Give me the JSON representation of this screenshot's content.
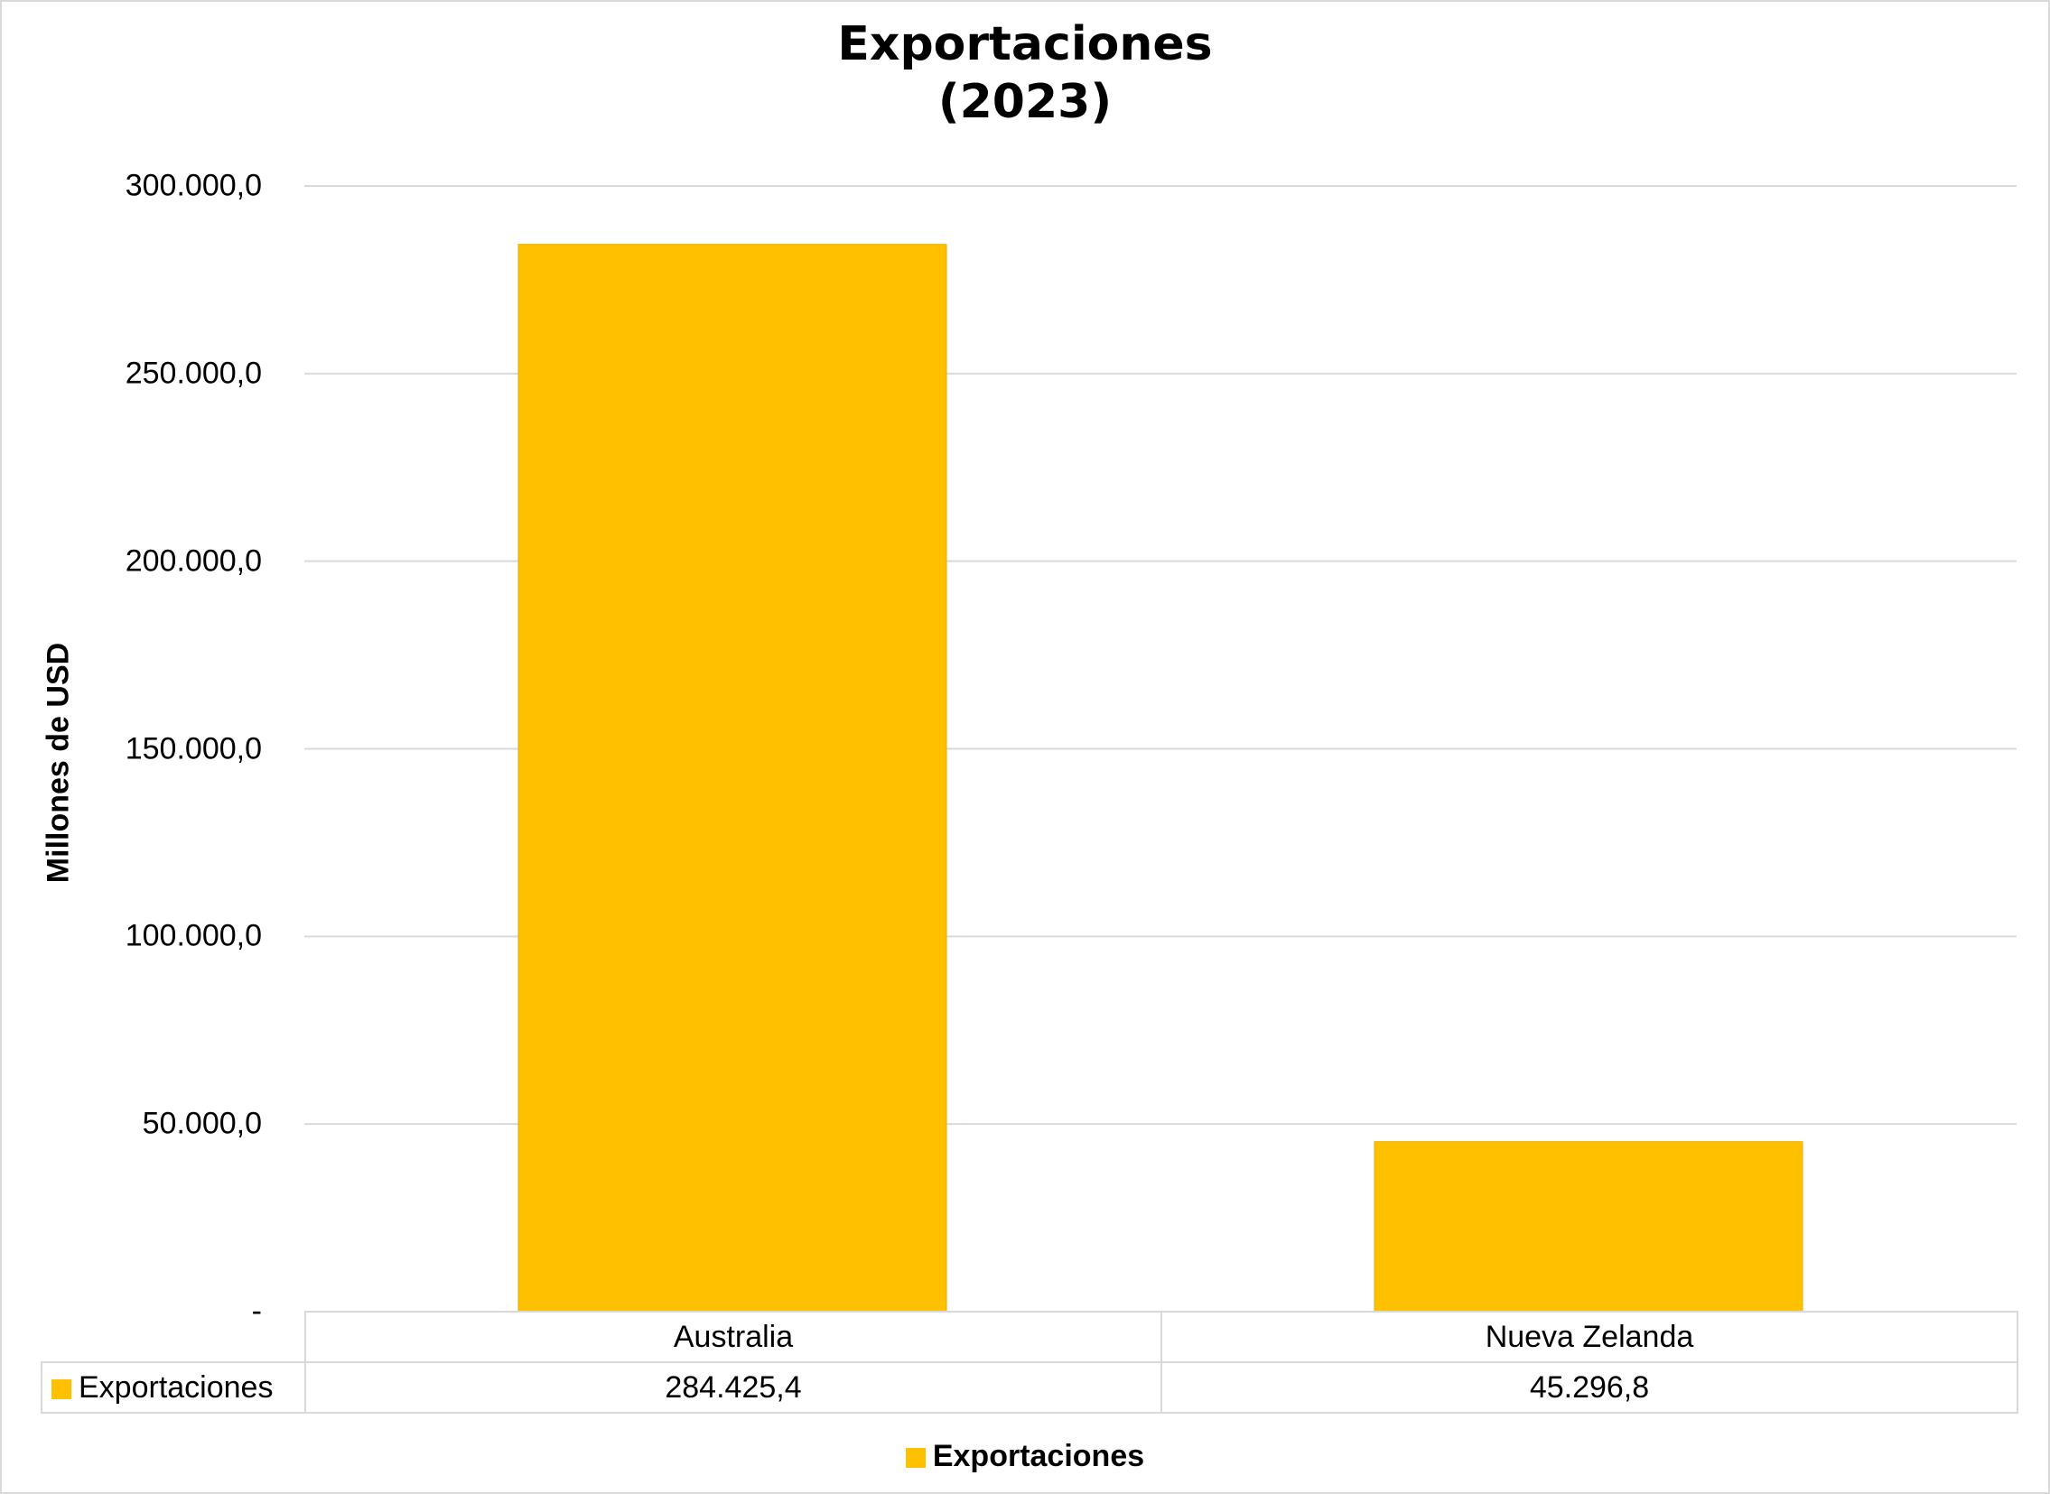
{
  "chart_data": {
    "type": "bar",
    "title": [
      "Exportaciones",
      "(2023)"
    ],
    "ylabel": "Millones de USD",
    "xlabel": "",
    "categories": [
      "Australia",
      "Nueva Zelanda"
    ],
    "series": [
      {
        "name": "Exportaciones",
        "values": [
          284425.4,
          45296.8
        ]
      }
    ],
    "value_labels": [
      "284.425,4",
      "45.296,8"
    ],
    "ylim": [
      0,
      300000
    ],
    "yticks": [
      0,
      50000,
      100000,
      150000,
      200000,
      250000,
      300000
    ],
    "ytick_labels": [
      "-",
      "50.000,0",
      "100.000,0",
      "150.000,0",
      "200.000,0",
      "250.000,0",
      "300.000,0"
    ],
    "grid": true,
    "legend_position": "bottom",
    "data_table": true,
    "colors": {
      "bar": "#ffc000",
      "grid": "#d9d9d9"
    }
  }
}
